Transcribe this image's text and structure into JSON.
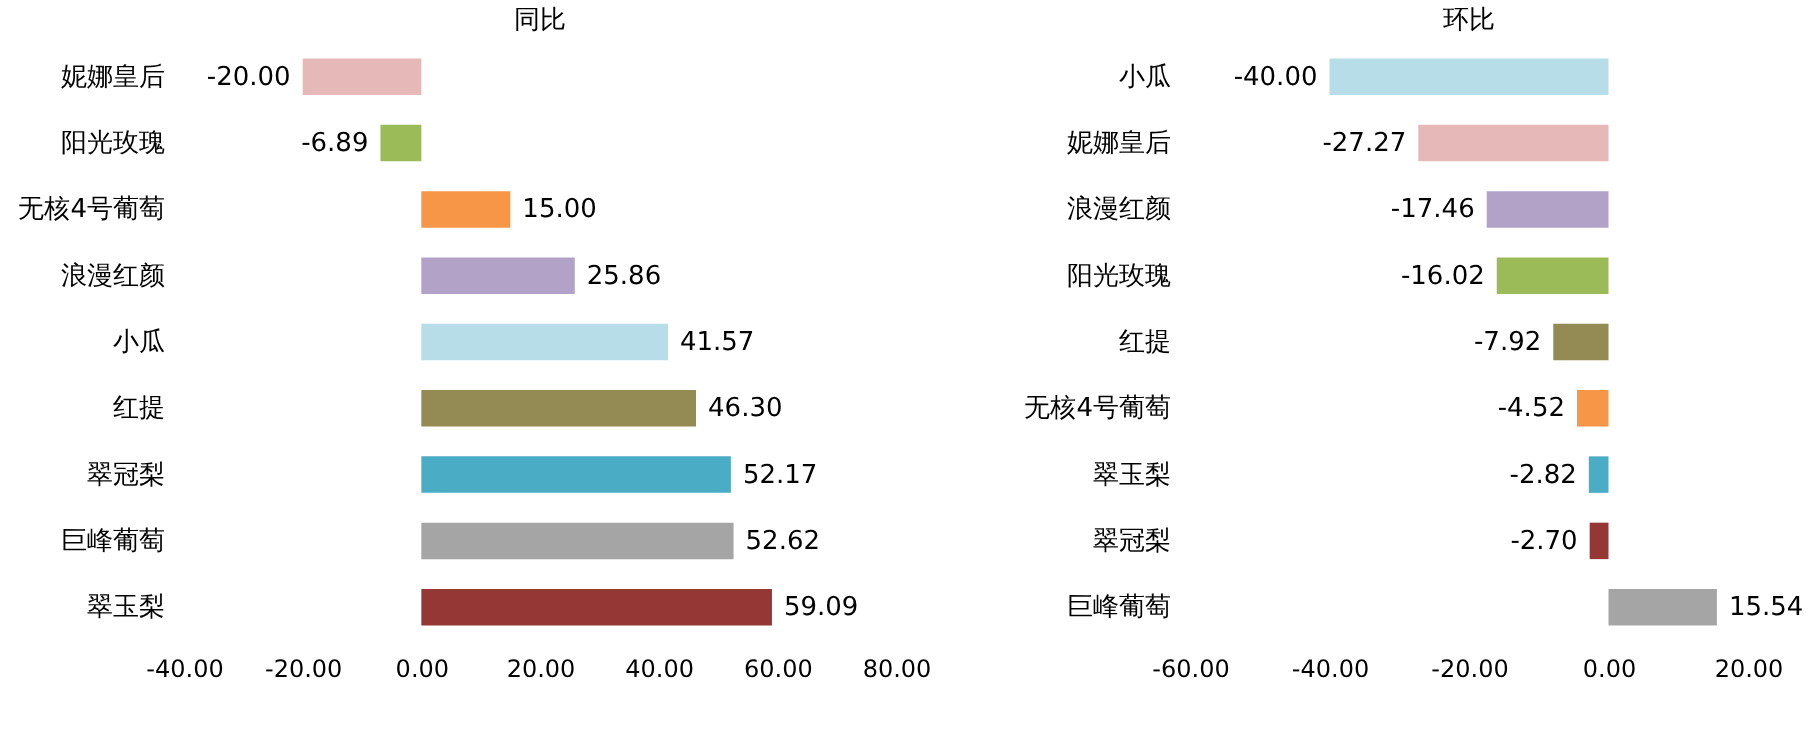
{
  "chart_data": [
    {
      "type": "bar",
      "orientation": "horizontal",
      "title": "同比",
      "categories": [
        "妮娜皇后",
        "阳光玫瑰",
        "无核4号葡萄",
        "浪漫红颜",
        "小瓜",
        "红提",
        "翠冠梨",
        "巨峰葡萄",
        "翠玉梨"
      ],
      "values": [
        -20.0,
        -6.89,
        15.0,
        25.86,
        41.57,
        46.3,
        52.17,
        52.62,
        59.09
      ],
      "colors": [
        "#e6b9b8",
        "#9bbb59",
        "#f79646",
        "#b3a2c7",
        "#b7dde8",
        "#948a54",
        "#4bacc6",
        "#a5a5a5",
        "#953735"
      ],
      "value_labels": [
        "-20.00",
        "-6.89",
        "15.00",
        "25.86",
        "41.57",
        "46.30",
        "52.17",
        "52.62",
        "59.09"
      ],
      "xlim": [
        -40,
        80
      ],
      "xticks": [
        {
          "value": -40,
          "label": "-40.00"
        },
        {
          "value": -20,
          "label": "-20.00"
        },
        {
          "value": 0,
          "label": "0.00"
        },
        {
          "value": 20,
          "label": "20.00"
        },
        {
          "value": 40,
          "label": "40.00"
        },
        {
          "value": 60,
          "label": "60.00"
        },
        {
          "value": 80,
          "label": "80.00"
        }
      ]
    },
    {
      "type": "bar",
      "orientation": "horizontal",
      "title": "环比",
      "categories": [
        "小瓜",
        "妮娜皇后",
        "浪漫红颜",
        "阳光玫瑰",
        "红提",
        "无核4号葡萄",
        "翠玉梨",
        "翠冠梨",
        "巨峰葡萄"
      ],
      "values": [
        -40.0,
        -27.27,
        -17.46,
        -16.02,
        -7.92,
        -4.52,
        -2.82,
        -2.7,
        15.54
      ],
      "colors": [
        "#b7dde8",
        "#e6b9b8",
        "#b3a2c7",
        "#9bbb59",
        "#948a54",
        "#f79646",
        "#4bacc6",
        "#953735",
        "#a5a5a5"
      ],
      "value_labels": [
        "-40.00",
        "-27.27",
        "-17.46",
        "-16.02",
        "-7.92",
        "-4.52",
        "-2.82",
        "-2.70",
        "15.54"
      ],
      "xlim": [
        -60,
        20
      ],
      "xticks": [
        {
          "value": -60,
          "label": "-60.00"
        },
        {
          "value": -40,
          "label": "-40.00"
        },
        {
          "value": -20,
          "label": "-20.00"
        },
        {
          "value": 0,
          "label": "0.00"
        },
        {
          "value": 20,
          "label": "20.00"
        }
      ]
    }
  ]
}
